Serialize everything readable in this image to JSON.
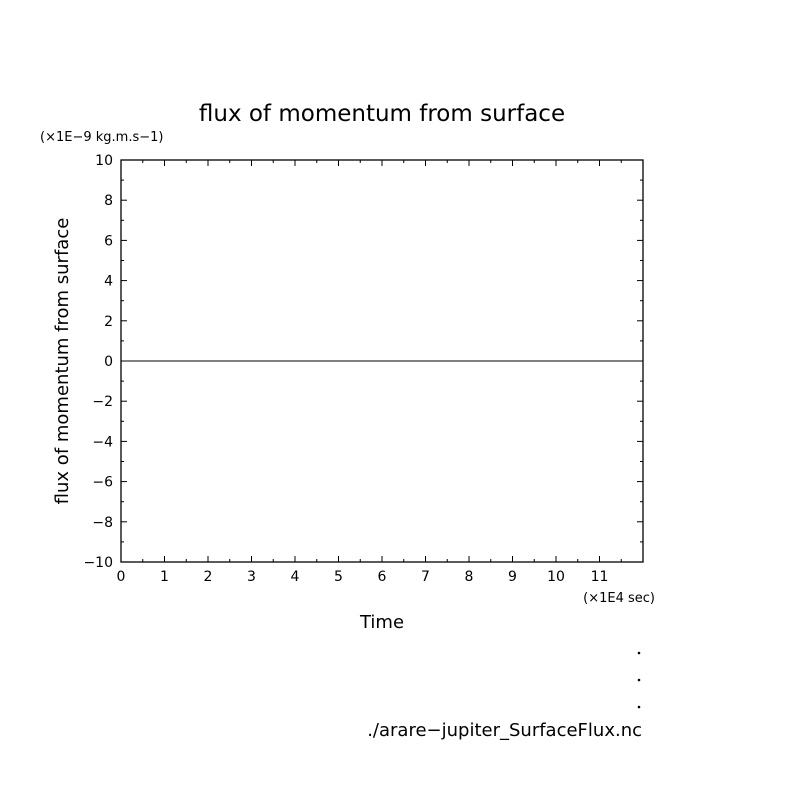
{
  "chart_data": {
    "type": "line",
    "title": "flux of momentum from surface",
    "xlabel": "Time",
    "ylabel": "flux of momentum from surface",
    "x_unit": "(×1E4 sec)",
    "y_unit": "(×1E−9 kg.m.s−1)",
    "xlim": [
      0,
      12
    ],
    "ylim": [
      -10,
      10
    ],
    "x_ticks": [
      0,
      1,
      2,
      3,
      4,
      5,
      6,
      7,
      8,
      9,
      10,
      11
    ],
    "x_tick_labels": [
      "0",
      "1",
      "2",
      "3",
      "4",
      "5",
      "6",
      "7",
      "8",
      "9",
      "10",
      "11"
    ],
    "y_ticks": [
      -10,
      -8,
      -6,
      -4,
      -2,
      0,
      2,
      4,
      6,
      8,
      10
    ],
    "y_tick_labels": [
      "−10",
      "−8",
      "−6",
      "−4",
      "−2",
      "0",
      "2",
      "4",
      "6",
      "8",
      "10"
    ],
    "x": [
      0,
      12
    ],
    "y": [
      0,
      0
    ],
    "grid": false,
    "file_label": "./arare−jupiter_SurfaceFlux.nc"
  }
}
